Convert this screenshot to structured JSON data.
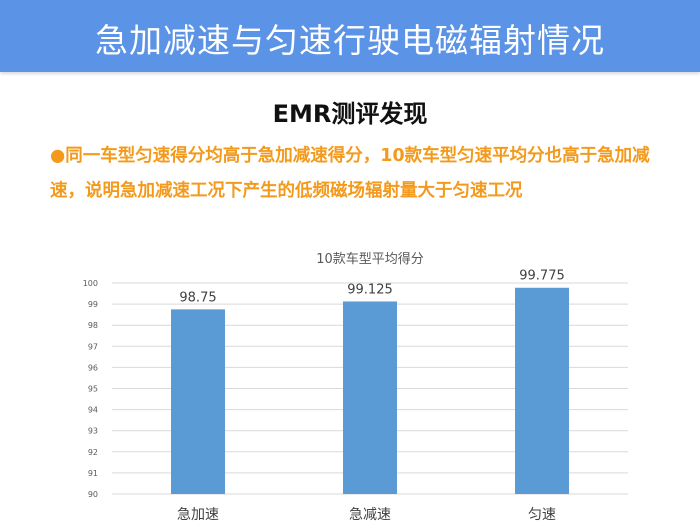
{
  "header": {
    "title": "急加减速与匀速行驶电磁辐射情况",
    "subtitle": "EMR测评发现",
    "finding": "●同一车型匀速得分均高于急加减速得分，10款车型匀速平均分也高于急加减速，说明急加减速工况下产生的低频磁场辐射量大于匀速工况",
    "accent_color": "#f39a1c",
    "banner_color": "#5b93e6"
  },
  "chart_data": {
    "type": "bar",
    "title": "10款车型平均得分",
    "categories": [
      "急加速",
      "急减速",
      "匀速"
    ],
    "values": [
      98.75,
      99.125,
      99.775
    ],
    "value_labels": [
      "98.75",
      "99.125",
      "99.775"
    ],
    "ylim": [
      90,
      100
    ],
    "yticks": [
      "90",
      "91",
      "92",
      "93",
      "94",
      "95",
      "96",
      "97",
      "98",
      "99",
      "100"
    ],
    "xlabel": "",
    "ylabel": "",
    "grid": true,
    "legend": "none",
    "bar_color": "#5b9bd5"
  }
}
